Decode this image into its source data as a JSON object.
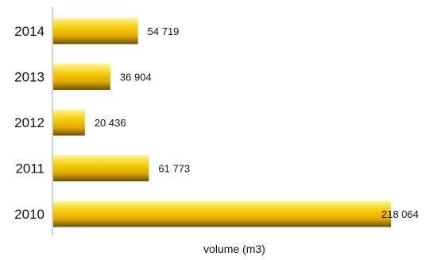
{
  "chart_data": {
    "type": "bar",
    "orientation": "horizontal",
    "categories": [
      "2014",
      "2013",
      "2012",
      "2011",
      "2010"
    ],
    "values": [
      54719,
      36904,
      20436,
      61773,
      218064
    ],
    "value_labels": [
      "54 719",
      "36 904",
      "20 436",
      "61 773",
      "218 064"
    ],
    "xlabel": "volume (m3)",
    "xlim": [
      0,
      218064
    ],
    "grid": false,
    "legend": "none",
    "colors": {
      "bar_top": "#fff176",
      "bar_mid": "#f5c400",
      "bar_bottom": "#6b5200",
      "axis": "#a6a6a6"
    }
  }
}
